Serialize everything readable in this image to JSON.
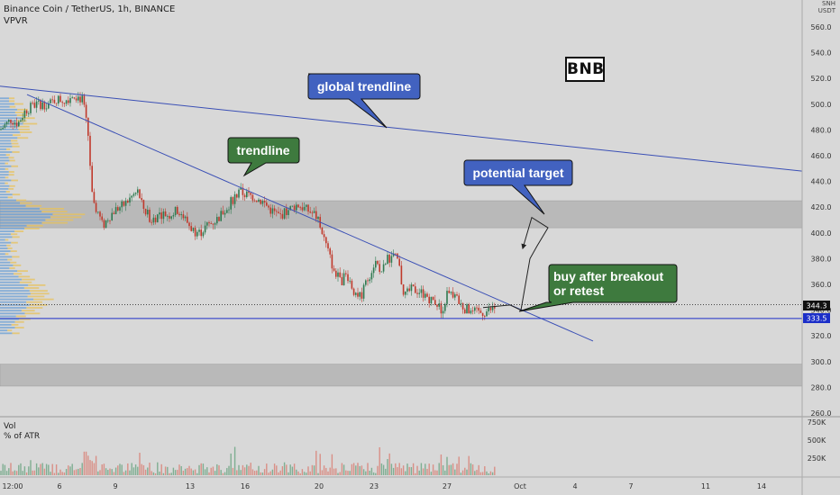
{
  "header": {
    "symbol": "Binance Coin / TetherUS, 1h, BINANCE",
    "indicator": "VPVR",
    "currency_badge": "USDT",
    "currency_badge_top": "SNH"
  },
  "ticker_label": "BNB",
  "volume_pane": {
    "title": "Vol",
    "subtitle": "% of ATR",
    "ticks": [
      "750K",
      "500K",
      "250K"
    ]
  },
  "callouts": {
    "global_trendline": "global trendline",
    "trendline": "trendline",
    "potential_target": "potential target",
    "buy_line1": "buy after breakout",
    "buy_line2": "or retest"
  },
  "price_markers": {
    "current": "344.3",
    "support": "333.5"
  },
  "colors": {
    "background": "#d8d8d8",
    "trendline": "#3a4fb5",
    "support_line": "#1c2fc8",
    "callout_blue": "#4262c0",
    "callout_green": "#3e7a3e",
    "candle_up": "#2e7a50",
    "candle_down": "#c0392b",
    "zone": "#b9b9b9"
  },
  "chart_data": {
    "type": "candlestick",
    "y_axis": {
      "range": [
        259,
        570
      ],
      "ticks": [
        560,
        540,
        520,
        500,
        480,
        460,
        440,
        420,
        400,
        380,
        360,
        340,
        320,
        300,
        280,
        260
      ],
      "tick_labels": [
        "560.0",
        "540.0",
        "520.0",
        "500.0",
        "480.0",
        "460.0",
        "440.0",
        "420.0",
        "400.0",
        "380.0",
        "360.0",
        "340.0",
        "320.0",
        "300.0",
        "280.0",
        "260.0"
      ]
    },
    "x_axis": {
      "tick_labels": [
        "12:00",
        "6",
        "9",
        "13",
        "16",
        "20",
        "23",
        "27",
        "Oct",
        "4",
        "7",
        "11",
        "14"
      ]
    },
    "price_path": [
      [
        0,
        480
      ],
      [
        12,
        488
      ],
      [
        20,
        485
      ],
      [
        28,
        495
      ],
      [
        40,
        500
      ],
      [
        55,
        500
      ],
      [
        62,
        504
      ],
      [
        72,
        503
      ],
      [
        82,
        508
      ],
      [
        92,
        503
      ],
      [
        98,
        475
      ],
      [
        103,
        420
      ],
      [
        108,
        418
      ],
      [
        114,
        405
      ],
      [
        120,
        412
      ],
      [
        128,
        418
      ],
      [
        138,
        422
      ],
      [
        146,
        428
      ],
      [
        153,
        432
      ],
      [
        160,
        418
      ],
      [
        168,
        410
      ],
      [
        178,
        415
      ],
      [
        188,
        414
      ],
      [
        198,
        418
      ],
      [
        206,
        410
      ],
      [
        214,
        402
      ],
      [
        222,
        400
      ],
      [
        230,
        406
      ],
      [
        240,
        410
      ],
      [
        250,
        418
      ],
      [
        258,
        426
      ],
      [
        266,
        432
      ],
      [
        272,
        430
      ],
      [
        282,
        428
      ],
      [
        292,
        424
      ],
      [
        300,
        418
      ],
      [
        310,
        413
      ],
      [
        320,
        418
      ],
      [
        330,
        422
      ],
      [
        340,
        418
      ],
      [
        350,
        414
      ],
      [
        356,
        404
      ],
      [
        362,
        390
      ],
      [
        370,
        372
      ],
      [
        378,
        362
      ],
      [
        385,
        368
      ],
      [
        392,
        356
      ],
      [
        400,
        350
      ],
      [
        408,
        364
      ],
      [
        416,
        378
      ],
      [
        424,
        370
      ],
      [
        430,
        380
      ],
      [
        436,
        382
      ],
      [
        442,
        378
      ],
      [
        448,
        350
      ],
      [
        456,
        356
      ],
      [
        464,
        355
      ],
      [
        472,
        352
      ],
      [
        478,
        348
      ],
      [
        484,
        346
      ],
      [
        490,
        340
      ],
      [
        496,
        352
      ],
      [
        502,
        352
      ],
      [
        508,
        348
      ],
      [
        514,
        342
      ],
      [
        520,
        340
      ],
      [
        528,
        338
      ],
      [
        536,
        338
      ],
      [
        544,
        340
      ],
      [
        550,
        342
      ]
    ],
    "trendline": {
      "from": [
        30,
        507.5
      ],
      "to": [
        658,
        316
      ]
    },
    "global_trendline": {
      "from": [
        0,
        514
      ],
      "to": [
        890,
        448
      ]
    },
    "support_level": 333.5,
    "last_price": 344.3,
    "zones": [
      {
        "from": 404,
        "to": 425
      },
      {
        "from": 281,
        "to": 298
      }
    ],
    "projection": [
      [
        536,
        342
      ],
      [
        566,
        344
      ],
      [
        578,
        340
      ],
      [
        588,
        380
      ],
      [
        596,
        390
      ],
      [
        608,
        404
      ],
      [
        590,
        412
      ],
      [
        580,
        388
      ]
    ],
    "volume_ticks": [
      750000,
      500000,
      250000
    ]
  }
}
